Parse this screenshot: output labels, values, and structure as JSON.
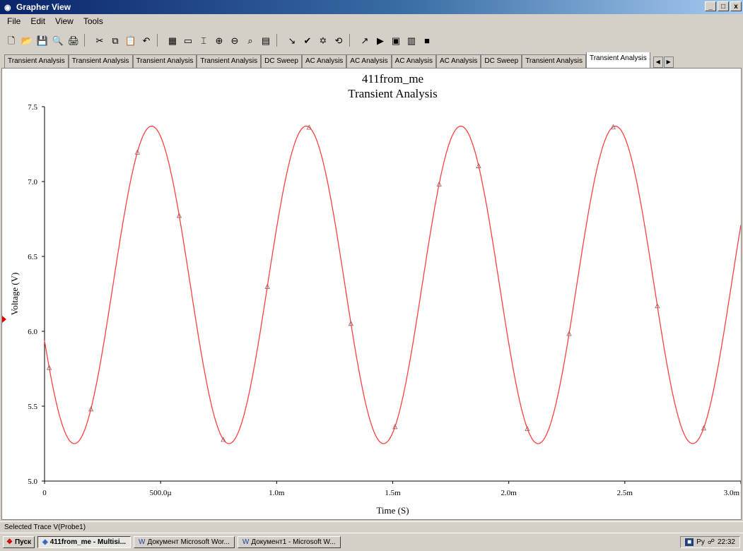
{
  "window": {
    "title": "Grapher View",
    "min": "_",
    "max": "□",
    "close": "x"
  },
  "menu": [
    "File",
    "Edit",
    "View",
    "Tools"
  ],
  "toolbar": [
    {
      "name": "new-icon",
      "glyph": "🗋"
    },
    {
      "name": "open-icon",
      "glyph": "📂"
    },
    {
      "name": "save-icon",
      "glyph": "💾"
    },
    {
      "name": "print-preview-icon",
      "glyph": "🔍"
    },
    {
      "name": "print-icon",
      "glyph": "🖨"
    },
    {
      "name": "sep",
      "glyph": ""
    },
    {
      "name": "cut-icon",
      "glyph": "✂"
    },
    {
      "name": "copy-icon",
      "glyph": "⧉"
    },
    {
      "name": "paste-icon",
      "glyph": "📋"
    },
    {
      "name": "undo-icon",
      "glyph": "↶"
    },
    {
      "name": "sep",
      "glyph": ""
    },
    {
      "name": "grid-icon",
      "glyph": "▦"
    },
    {
      "name": "legend-icon",
      "glyph": "▭"
    },
    {
      "name": "cursors-icon",
      "glyph": "⌶"
    },
    {
      "name": "zoom-in-icon",
      "glyph": "⊕"
    },
    {
      "name": "zoom-out-icon",
      "glyph": "⊖"
    },
    {
      "name": "zoom-area-icon",
      "glyph": "⌕"
    },
    {
      "name": "properties-icon",
      "glyph": "▤"
    },
    {
      "name": "sep",
      "glyph": ""
    },
    {
      "name": "toggle-bw-icon",
      "glyph": "↘"
    },
    {
      "name": "overlay-icon",
      "glyph": "✔"
    },
    {
      "name": "export-icon",
      "glyph": "✡"
    },
    {
      "name": "restore-icon",
      "glyph": "⟲"
    },
    {
      "name": "sep",
      "glyph": ""
    },
    {
      "name": "cursor-select-icon",
      "glyph": "↗"
    },
    {
      "name": "marker-icon",
      "glyph": "▶"
    },
    {
      "name": "excel-export-icon",
      "glyph": "▣"
    },
    {
      "name": "mathcad-export-icon",
      "glyph": "▥"
    },
    {
      "name": "record-icon",
      "glyph": "■"
    }
  ],
  "tabs": [
    {
      "label": "Transient Analysis",
      "active": false
    },
    {
      "label": "Transient Analysis",
      "active": false
    },
    {
      "label": "Transient Analysis",
      "active": false
    },
    {
      "label": "Transient Analysis",
      "active": false
    },
    {
      "label": "DC Sweep",
      "active": false
    },
    {
      "label": "AC Analysis",
      "active": false
    },
    {
      "label": "AC Analysis",
      "active": false
    },
    {
      "label": "AC Analysis",
      "active": false
    },
    {
      "label": "AC Analysis",
      "active": false
    },
    {
      "label": "DC Sweep",
      "active": false
    },
    {
      "label": "Transient Analysis",
      "active": false
    },
    {
      "label": "Transient Analysis",
      "active": true
    }
  ],
  "tab_scroll": [
    "◀",
    "▶"
  ],
  "chart_data": {
    "type": "line",
    "title": "411from_me",
    "subtitle": "Transient Analysis",
    "xlabel": "Time (S)",
    "ylabel": "Voltage (V)",
    "xlim": [
      0,
      0.003
    ],
    "ylim": [
      5.0,
      7.5
    ],
    "xticks": [
      0,
      0.0005,
      0.001,
      0.0015,
      0.002,
      0.0025,
      0.003
    ],
    "xtick_labels": [
      "0",
      "500.0µ",
      "1.0m",
      "1.5m",
      "2.0m",
      "2.5m",
      "3.0m"
    ],
    "yticks": [
      5.0,
      5.5,
      6.0,
      6.5,
      7.0,
      7.5
    ],
    "ytick_labels": [
      "5.0",
      "5.5",
      "6.0",
      "6.5",
      "7.0",
      "7.5"
    ],
    "series_color": "#ff4040",
    "waveform": {
      "offset_V": 6.31,
      "amplitude_V": 1.06,
      "period_s": 0.000666,
      "phase_at_zero_s": 0.0
    },
    "markers_x": [
      2e-05,
      0.0002,
      0.0004,
      0.00058,
      0.00077,
      0.00096,
      0.00114,
      0.00132,
      0.00151,
      0.0017,
      0.00187,
      0.00208,
      0.00226,
      0.00245,
      0.00264,
      0.00284
    ],
    "grid": false
  },
  "status": {
    "text": "Selected Trace V(Probe1)"
  },
  "taskbar": {
    "start": "Пуск",
    "tasks": [
      {
        "label": "411from_me - Multisi...",
        "active": true
      },
      {
        "label": "Документ Microsoft Wor...",
        "active": false
      },
      {
        "label": "Документ1 - Microsoft W...",
        "active": false
      }
    ],
    "lang": "Ру",
    "clock": "22:32"
  }
}
